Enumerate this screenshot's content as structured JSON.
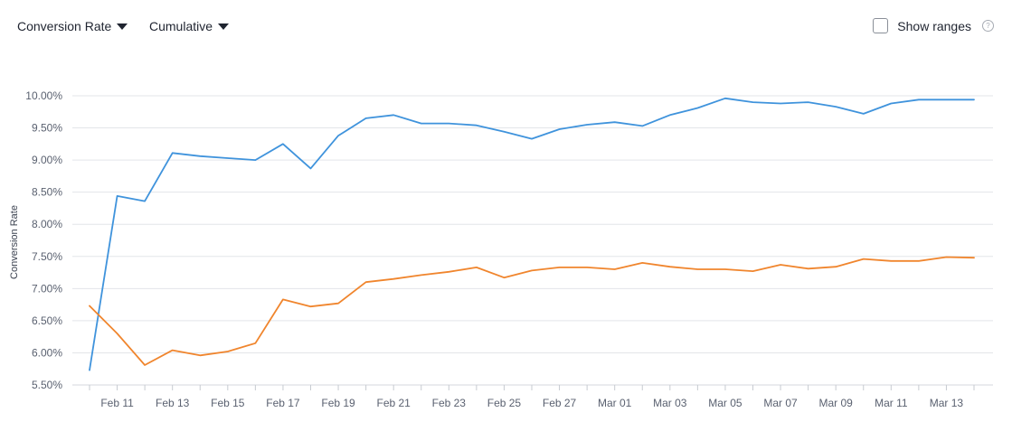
{
  "controls": {
    "metric_label": "Conversion Rate",
    "mode_label": "Cumulative",
    "ranges_label": "Show ranges",
    "help_icon": "?"
  },
  "chart_data": {
    "type": "line",
    "ylabel": "Conversion Rate",
    "ylim": [
      5.5,
      10.0
    ],
    "yticks": [
      "10.00%",
      "9.50%",
      "9.00%",
      "8.50%",
      "8.00%",
      "7.50%",
      "7.00%",
      "6.50%",
      "6.00%",
      "5.50%"
    ],
    "x": [
      "Feb 10",
      "Feb 11",
      "Feb 12",
      "Feb 13",
      "Feb 14",
      "Feb 15",
      "Feb 16",
      "Feb 17",
      "Feb 18",
      "Feb 19",
      "Feb 20",
      "Feb 21",
      "Feb 22",
      "Feb 23",
      "Feb 24",
      "Feb 25",
      "Feb 26",
      "Feb 27",
      "Feb 28",
      "Mar 01",
      "Mar 02",
      "Mar 03",
      "Mar 04",
      "Mar 05",
      "Mar 06",
      "Mar 07",
      "Mar 08",
      "Mar 09",
      "Mar 10",
      "Mar 11",
      "Mar 12",
      "Mar 13",
      "Mar 14"
    ],
    "xtick_labels": [
      "Feb 11",
      "Feb 13",
      "Feb 15",
      "Feb 17",
      "Feb 19",
      "Feb 21",
      "Feb 23",
      "Feb 25",
      "Feb 27",
      "Mar 01",
      "Mar 03",
      "Mar 05",
      "Mar 07",
      "Mar 09",
      "Mar 11",
      "Mar 13"
    ],
    "grid": true,
    "series": [
      {
        "color": "#3f93dc",
        "values": [
          5.73,
          8.44,
          8.36,
          9.11,
          9.06,
          9.03,
          9.0,
          9.25,
          8.87,
          9.38,
          9.65,
          9.7,
          9.57,
          9.57,
          9.54,
          9.44,
          9.33,
          9.48,
          9.55,
          9.59,
          9.53,
          9.7,
          9.81,
          9.96,
          9.9,
          9.88,
          9.9,
          9.83,
          9.72,
          9.88,
          9.94,
          9.94,
          9.94
        ]
      },
      {
        "color": "#f0852d",
        "values": [
          6.73,
          6.3,
          5.81,
          6.04,
          5.96,
          6.02,
          6.15,
          6.83,
          6.72,
          6.77,
          7.1,
          7.15,
          7.21,
          7.26,
          7.33,
          7.17,
          7.28,
          7.33,
          7.33,
          7.3,
          7.4,
          7.34,
          7.3,
          7.3,
          7.27,
          7.37,
          7.31,
          7.34,
          7.46,
          7.43,
          7.43,
          7.49,
          7.48
        ]
      }
    ]
  }
}
